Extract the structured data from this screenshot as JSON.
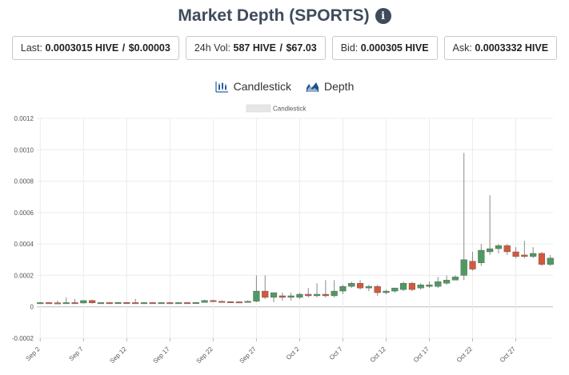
{
  "header": {
    "title": "Market Depth (SPORTS)",
    "info_icon": "info-icon"
  },
  "stats": {
    "last_label": "Last:",
    "last_value": "0.0003015 HIVE",
    "last_sep": "/",
    "last_usd": "$0.00003",
    "vol_label": "24h Vol:",
    "vol_value": "587 HIVE",
    "vol_sep": "/",
    "vol_usd": "$67.03",
    "bid_label": "Bid:",
    "bid_value": "0.000305 HIVE",
    "ask_label": "Ask:",
    "ask_value": "0.0003332 HIVE"
  },
  "tabs": {
    "candlestick_label": "Candlestick",
    "candlestick_icon": "candlestick-chart-icon",
    "depth_label": "Depth",
    "depth_icon": "depth-chart-icon"
  },
  "chart_data": {
    "type": "candlestick",
    "legend": {
      "label": "Candlestick",
      "position": "top-center"
    },
    "ylim": [
      -0.0002,
      0.0012
    ],
    "yticks": [
      -0.0002,
      0,
      0.0002,
      0.0004,
      0.0006,
      0.0008,
      0.001,
      0.0012
    ],
    "ytick_labels": [
      "-0.0002",
      "0",
      "0.0002",
      "0.0004",
      "0.0006",
      "0.0008",
      "0.0010",
      "0.0012"
    ],
    "xlim": [
      "Sep 2",
      "Nov 1"
    ],
    "xticks": [
      "Sep 2",
      "Sep 7",
      "Sep 12",
      "Sep 17",
      "Sep 22",
      "Sep 27",
      "Oct 2",
      "Oct 7",
      "Oct 12",
      "Oct 17",
      "Oct 22",
      "Oct 27"
    ],
    "grid": true,
    "colors": {
      "up": "#4f9a61",
      "down": "#d6573c",
      "grid": "#ececec",
      "zero": "#bdbdbd"
    },
    "candles": [
      {
        "date": "Sep 2",
        "o": 2.5e-05,
        "h": 3e-05,
        "l": 2.2e-05,
        "c": 2.7e-05
      },
      {
        "date": "Sep 3",
        "o": 2.7e-05,
        "h": 3e-05,
        "l": 2.4e-05,
        "c": 2.6e-05
      },
      {
        "date": "Sep 4",
        "o": 2.6e-05,
        "h": 4e-05,
        "l": 2e-05,
        "c": 2.3e-05
      },
      {
        "date": "Sep 5",
        "o": 2.3e-05,
        "h": 6e-05,
        "l": 2e-05,
        "c": 2.7e-05
      },
      {
        "date": "Sep 6",
        "o": 2.7e-05,
        "h": 5e-05,
        "l": 2.2e-05,
        "c": 2.4e-05
      },
      {
        "date": "Sep 7",
        "o": 2.4e-05,
        "h": 4e-05,
        "l": 2.2e-05,
        "c": 4e-05
      },
      {
        "date": "Sep 8",
        "o": 4e-05,
        "h": 4.5e-05,
        "l": 2e-05,
        "c": 2.5e-05
      },
      {
        "date": "Sep 9",
        "o": 2.5e-05,
        "h": 3e-05,
        "l": 2.2e-05,
        "c": 2.7e-05
      },
      {
        "date": "Sep 10",
        "o": 2.7e-05,
        "h": 3e-05,
        "l": 2.2e-05,
        "c": 2.5e-05
      },
      {
        "date": "Sep 11",
        "o": 2.5e-05,
        "h": 3e-05,
        "l": 2.3e-05,
        "c": 2.8e-05
      },
      {
        "date": "Sep 12",
        "o": 2.8e-05,
        "h": 3e-05,
        "l": 2.4e-05,
        "c": 2.7e-05
      },
      {
        "date": "Sep 13",
        "o": 2.7e-05,
        "h": 5e-05,
        "l": 2.2e-05,
        "c": 2.4e-05
      },
      {
        "date": "Sep 14",
        "o": 2.4e-05,
        "h": 3e-05,
        "l": 2.2e-05,
        "c": 2.7e-05
      },
      {
        "date": "Sep 15",
        "o": 2.7e-05,
        "h": 3e-05,
        "l": 2.4e-05,
        "c": 2.5e-05
      },
      {
        "date": "Sep 16",
        "o": 2.5e-05,
        "h": 3e-05,
        "l": 2.2e-05,
        "c": 2.7e-05
      },
      {
        "date": "Sep 17",
        "o": 2.7e-05,
        "h": 3e-05,
        "l": 2.4e-05,
        "c": 2.5e-05
      },
      {
        "date": "Sep 18",
        "o": 2.5e-05,
        "h": 3e-05,
        "l": 2.3e-05,
        "c": 2.7e-05
      },
      {
        "date": "Sep 19",
        "o": 2.7e-05,
        "h": 3e-05,
        "l": 2.4e-05,
        "c": 2.6e-05
      },
      {
        "date": "Sep 20",
        "o": 2.6e-05,
        "h": 3e-05,
        "l": 2.4e-05,
        "c": 2.8e-05
      },
      {
        "date": "Sep 21",
        "o": 2.8e-05,
        "h": 4.5e-05,
        "l": 2.6e-05,
        "c": 4e-05
      },
      {
        "date": "Sep 22",
        "o": 4e-05,
        "h": 4.5e-05,
        "l": 3e-05,
        "c": 3.5e-05
      },
      {
        "date": "Sep 23",
        "o": 3.5e-05,
        "h": 4e-05,
        "l": 3e-05,
        "c": 3.3e-05
      },
      {
        "date": "Sep 24",
        "o": 3.3e-05,
        "h": 3.6e-05,
        "l": 3e-05,
        "c": 3.2e-05
      },
      {
        "date": "Sep 25",
        "o": 3.2e-05,
        "h": 3.4e-05,
        "l": 3e-05,
        "c": 3.1e-05
      },
      {
        "date": "Sep 26",
        "o": 3.1e-05,
        "h": 4e-05,
        "l": 3e-05,
        "c": 3.5e-05
      },
      {
        "date": "Sep 27",
        "o": 3.5e-05,
        "h": 0.0002,
        "l": 3e-05,
        "c": 0.0001
      },
      {
        "date": "Sep 28",
        "o": 0.0001,
        "h": 0.0002,
        "l": 5e-05,
        "c": 6e-05
      },
      {
        "date": "Sep 29",
        "o": 6e-05,
        "h": 9e-05,
        "l": 3e-05,
        "c": 9e-05
      },
      {
        "date": "Sep 30",
        "o": 7e-05,
        "h": 9e-05,
        "l": 4e-05,
        "c": 6e-05
      },
      {
        "date": "Oct 1",
        "o": 6e-05,
        "h": 9e-05,
        "l": 4e-05,
        "c": 7e-05
      },
      {
        "date": "Oct 2",
        "o": 6e-05,
        "h": 9e-05,
        "l": 5e-05,
        "c": 8e-05
      },
      {
        "date": "Oct 3",
        "o": 8e-05,
        "h": 0.00012,
        "l": 6e-05,
        "c": 7e-05
      },
      {
        "date": "Oct 4",
        "o": 7e-05,
        "h": 0.00015,
        "l": 6e-05,
        "c": 8e-05
      },
      {
        "date": "Oct 5",
        "o": 8e-05,
        "h": 0.00017,
        "l": 6e-05,
        "c": 7e-05
      },
      {
        "date": "Oct 6",
        "o": 7e-05,
        "h": 0.00017,
        "l": 6e-05,
        "c": 0.0001
      },
      {
        "date": "Oct 7",
        "o": 0.0001,
        "h": 0.00014,
        "l": 8e-05,
        "c": 0.00013
      },
      {
        "date": "Oct 8",
        "o": 0.00013,
        "h": 0.00016,
        "l": 0.00012,
        "c": 0.00015
      },
      {
        "date": "Oct 9",
        "o": 0.00015,
        "h": 0.00017,
        "l": 0.00011,
        "c": 0.00012
      },
      {
        "date": "Oct 10",
        "o": 0.00012,
        "h": 0.00014,
        "l": 0.0001,
        "c": 0.00013
      },
      {
        "date": "Oct 11",
        "o": 0.00013,
        "h": 0.00014,
        "l": 7e-05,
        "c": 9e-05
      },
      {
        "date": "Oct 12",
        "o": 9e-05,
        "h": 0.00011,
        "l": 8e-05,
        "c": 0.0001
      },
      {
        "date": "Oct 13",
        "o": 0.0001,
        "h": 0.00012,
        "l": 9e-05,
        "c": 0.00012
      },
      {
        "date": "Oct 14",
        "o": 0.00011,
        "h": 0.00016,
        "l": 0.0001,
        "c": 0.00015
      },
      {
        "date": "Oct 15",
        "o": 0.00015,
        "h": 0.00016,
        "l": 0.0001,
        "c": 0.00011
      },
      {
        "date": "Oct 16",
        "o": 0.00012,
        "h": 0.00015,
        "l": 0.00011,
        "c": 0.00014
      },
      {
        "date": "Oct 17",
        "o": 0.00013,
        "h": 0.00016,
        "l": 0.00012,
        "c": 0.00014
      },
      {
        "date": "Oct 18",
        "o": 0.00013,
        "h": 0.00019,
        "l": 0.00012,
        "c": 0.00016
      },
      {
        "date": "Oct 19",
        "o": 0.00015,
        "h": 0.0002,
        "l": 0.00014,
        "c": 0.00017
      },
      {
        "date": "Oct 20",
        "o": 0.00017,
        "h": 0.0002,
        "l": 0.00017,
        "c": 0.00019
      },
      {
        "date": "Oct 21",
        "o": 0.0002,
        "h": 0.00098,
        "l": 0.00017,
        "c": 0.0003
      },
      {
        "date": "Oct 22",
        "o": 0.00029,
        "h": 0.00035,
        "l": 0.00023,
        "c": 0.00024
      },
      {
        "date": "Oct 23",
        "o": 0.00028,
        "h": 0.0004,
        "l": 0.00026,
        "c": 0.00036
      },
      {
        "date": "Oct 24",
        "o": 0.00035,
        "h": 0.00071,
        "l": 0.00033,
        "c": 0.00037
      },
      {
        "date": "Oct 25",
        "o": 0.00037,
        "h": 0.0004,
        "l": 0.00034,
        "c": 0.00039
      },
      {
        "date": "Oct 26",
        "o": 0.00039,
        "h": 0.0004,
        "l": 0.00033,
        "c": 0.00035
      },
      {
        "date": "Oct 27",
        "o": 0.00035,
        "h": 0.00038,
        "l": 0.00031,
        "c": 0.00032
      },
      {
        "date": "Oct 28",
        "o": 0.00033,
        "h": 0.00042,
        "l": 0.00031,
        "c": 0.00032
      },
      {
        "date": "Oct 29",
        "o": 0.00032,
        "h": 0.00038,
        "l": 0.00031,
        "c": 0.00034
      },
      {
        "date": "Oct 30",
        "o": 0.00034,
        "h": 0.00035,
        "l": 0.00026,
        "c": 0.00027
      },
      {
        "date": "Oct 31",
        "o": 0.00027,
        "h": 0.00033,
        "l": 0.00026,
        "c": 0.00031
      }
    ]
  }
}
